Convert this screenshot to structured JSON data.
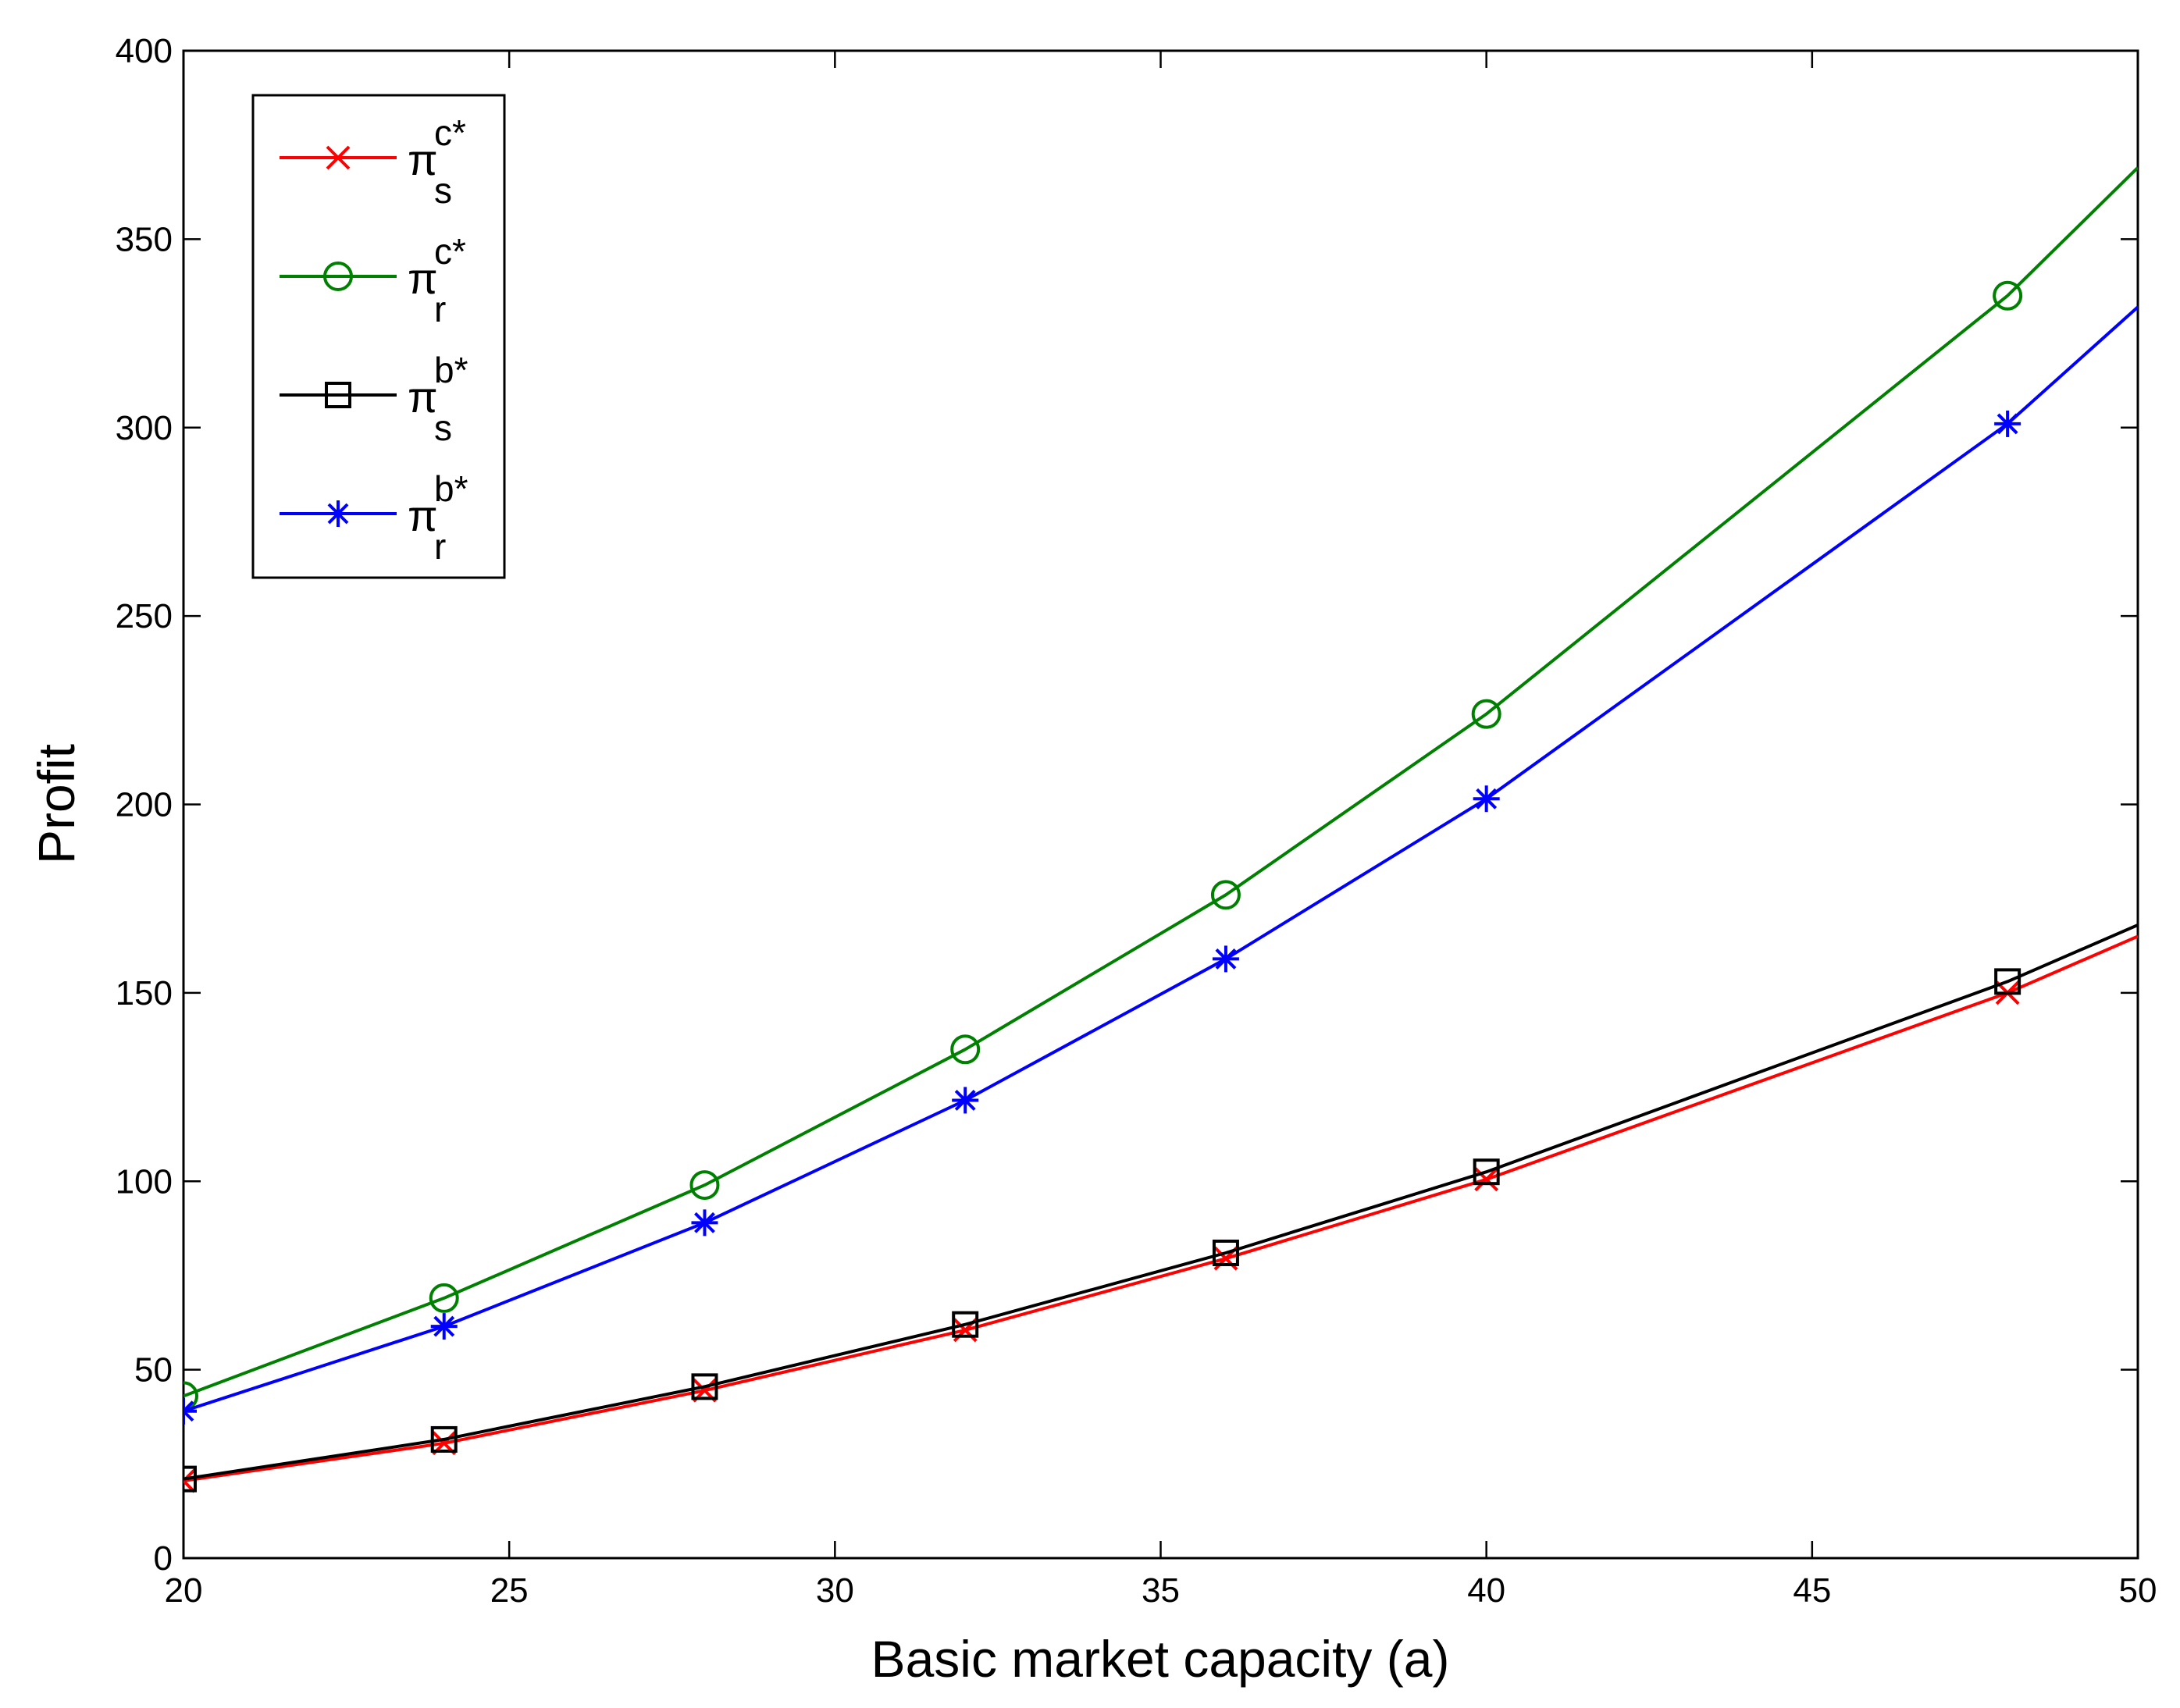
{
  "chart_data": {
    "type": "line",
    "title": "",
    "xlabel": "Basic market capacity (a)",
    "ylabel": "Profit",
    "xlim": [
      20,
      50
    ],
    "ylim": [
      0,
      400
    ],
    "xticks": [
      20,
      25,
      30,
      35,
      40,
      45,
      50
    ],
    "yticks": [
      0,
      50,
      100,
      150,
      200,
      250,
      300,
      350,
      400
    ],
    "grid": false,
    "legend_position": "top-left",
    "series": [
      {
        "name": "π_s^{c*}",
        "label": {
          "base": "π",
          "sup": "c*",
          "sub": "s"
        },
        "color": "#ff0000",
        "marker": "x",
        "x": [
          20,
          24,
          28,
          32,
          36,
          40,
          48,
          50
        ],
        "y": [
          20.5,
          30.5,
          44.5,
          60.5,
          79.5,
          100.5,
          150,
          165
        ]
      },
      {
        "name": "π_r^{c*}",
        "label": {
          "base": "π",
          "sup": "c*",
          "sub": "r"
        },
        "color": "#008000",
        "marker": "circle",
        "x": [
          20,
          24,
          28,
          32,
          36,
          40,
          48,
          50
        ],
        "y": [
          43,
          69,
          99,
          135,
          176,
          224,
          335,
          369
        ]
      },
      {
        "name": "π_s^{b*}",
        "label": {
          "base": "π",
          "sup": "b*",
          "sub": "s"
        },
        "color": "#000000",
        "marker": "square",
        "x": [
          20,
          24,
          28,
          32,
          36,
          40,
          48,
          50
        ],
        "y": [
          21,
          31.5,
          45.5,
          62,
          81,
          102.5,
          153,
          168
        ]
      },
      {
        "name": "π_r^{b*}",
        "label": {
          "base": "π",
          "sup": "b*",
          "sub": "r"
        },
        "color": "#0000ff",
        "marker": "asterisk",
        "x": [
          20,
          24,
          28,
          32,
          36,
          40,
          48,
          50
        ],
        "y": [
          39,
          61.5,
          89,
          121.5,
          159,
          201.5,
          301,
          332
        ]
      }
    ]
  }
}
